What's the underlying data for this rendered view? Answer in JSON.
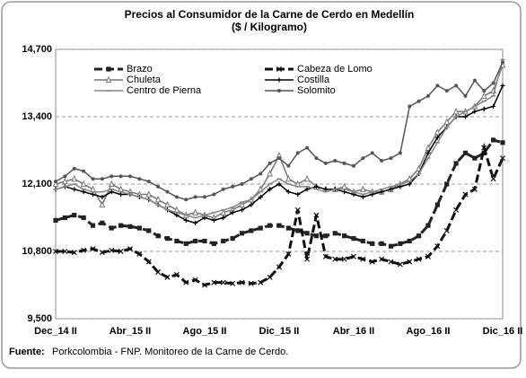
{
  "chart_data": {
    "type": "line",
    "title": "Precios al Consumidor de la Carne de Cerdo en Medellín",
    "subtitle": "($ / Kilogramo)",
    "source_label": "Fuente:",
    "source_text": "Porkcolombia - FNP.  Monitoreo de la Carne de Cerdo.",
    "categories": [
      "Dec_14 II",
      null,
      null,
      null,
      null,
      null,
      null,
      null,
      "Abr_15 II",
      null,
      null,
      null,
      null,
      null,
      null,
      null,
      "Ago_15 II",
      null,
      null,
      null,
      null,
      null,
      null,
      null,
      "Dic_15 II",
      null,
      null,
      null,
      null,
      null,
      null,
      null,
      "Abr_16 II",
      null,
      null,
      null,
      null,
      null,
      null,
      null,
      "Ago_16 II",
      null,
      null,
      null,
      null,
      null,
      null,
      null,
      "Dic_16 II"
    ],
    "ylim": [
      9500,
      14700
    ],
    "yticks": [
      {
        "value": 9500,
        "label": "9,500"
      },
      {
        "value": 10800,
        "label": "10,800"
      },
      {
        "value": 12100,
        "label": "12,100"
      },
      {
        "value": 13400,
        "label": "13,400"
      },
      {
        "value": 14700,
        "label": "14,700"
      }
    ],
    "grid": true,
    "legend": "upper left",
    "series": [
      {
        "name": "Brazo",
        "color": "#222222",
        "dash": "9 4",
        "width": 3,
        "marker": "square",
        "values": [
          11400,
          11450,
          11500,
          11450,
          11300,
          11350,
          11250,
          11300,
          11280,
          11250,
          11200,
          11100,
          11050,
          11000,
          10950,
          11000,
          11000,
          10950,
          11000,
          11050,
          11150,
          11200,
          11250,
          11300,
          11300,
          11250,
          11200,
          11150,
          11100,
          11100,
          11150,
          11100,
          11050,
          11000,
          10950,
          10950,
          10900,
          10950,
          11000,
          11100,
          11300,
          11700,
          12100,
          12500,
          12700,
          12600,
          12700,
          12950,
          12900
        ]
      },
      {
        "name": "Cabeza de Lomo",
        "color": "#111111",
        "dash": "9 4",
        "width": 3,
        "marker": "x",
        "values": [
          10800,
          10800,
          10780,
          10820,
          10850,
          10780,
          10820,
          10800,
          10850,
          10750,
          10600,
          10400,
          10300,
          10350,
          10200,
          10250,
          10150,
          10200,
          10200,
          10180,
          10200,
          10180,
          10200,
          10300,
          10500,
          10750,
          11600,
          10650,
          11500,
          10700,
          10650,
          10650,
          10700,
          10650,
          10600,
          10650,
          10600,
          10550,
          10600,
          10650,
          10700,
          10900,
          11200,
          11600,
          11900,
          12000,
          12800,
          12200,
          12600
        ]
      },
      {
        "name": "Chuleta",
        "color": "#777777",
        "dash": "",
        "width": 1.5,
        "marker": "triangle",
        "values": [
          12100,
          12150,
          12200,
          12100,
          12000,
          11700,
          12100,
          12000,
          11950,
          11900,
          11900,
          11800,
          11700,
          11600,
          11500,
          11550,
          11500,
          11450,
          11550,
          11600,
          11700,
          11800,
          12000,
          12300,
          12650,
          12200,
          12100,
          12200,
          12050,
          12000,
          12000,
          12050,
          11950,
          12000,
          11950,
          11950,
          12000,
          12100,
          12200,
          12400,
          12800,
          13100,
          13300,
          13500,
          13500,
          13600,
          13800,
          13900,
          14400
        ]
      },
      {
        "name": "Costilla",
        "color": "#000000",
        "dash": "",
        "width": 1.5,
        "marker": "plus",
        "values": [
          12000,
          12050,
          12000,
          11950,
          11900,
          11850,
          11950,
          11900,
          11900,
          11850,
          11800,
          11700,
          11600,
          11500,
          11400,
          11350,
          11450,
          11400,
          11450,
          11550,
          11600,
          11700,
          11850,
          12000,
          12100,
          11950,
          11900,
          12000,
          12050,
          12000,
          12000,
          11950,
          11900,
          11850,
          11900,
          11950,
          12000,
          12050,
          12100,
          12300,
          12700,
          13000,
          13200,
          13400,
          13400,
          13500,
          13550,
          13600,
          14000
        ]
      },
      {
        "name": "Centro de Pierna",
        "color": "#888888",
        "dash": "",
        "width": 1.5,
        "marker": "dash",
        "values": [
          12000,
          12050,
          12100,
          12000,
          11950,
          11950,
          12000,
          11950,
          11900,
          11850,
          11800,
          11700,
          11600,
          11550,
          11500,
          11450,
          11500,
          11550,
          11600,
          11650,
          11750,
          11800,
          11950,
          12100,
          12200,
          12100,
          12050,
          12050,
          12000,
          11950,
          12000,
          12000,
          11950,
          11900,
          11950,
          12000,
          12050,
          12100,
          12150,
          12300,
          12600,
          12900,
          13200,
          13400,
          13500,
          13600,
          13700,
          13800,
          14500
        ]
      },
      {
        "name": "Solomito",
        "color": "#555555",
        "dash": "",
        "width": 1.5,
        "marker": "star",
        "values": [
          12150,
          12250,
          12400,
          12350,
          12200,
          12200,
          12250,
          12250,
          12250,
          12200,
          12150,
          12050,
          11950,
          11850,
          11800,
          11850,
          11850,
          11900,
          12000,
          12050,
          12100,
          12200,
          12300,
          12500,
          12600,
          12450,
          12700,
          12800,
          12600,
          12500,
          12550,
          12500,
          12450,
          12600,
          12700,
          12550,
          12600,
          12700,
          13600,
          13700,
          13800,
          14000,
          13900,
          14000,
          13800,
          14100,
          13900,
          14050,
          14450
        ]
      }
    ]
  }
}
